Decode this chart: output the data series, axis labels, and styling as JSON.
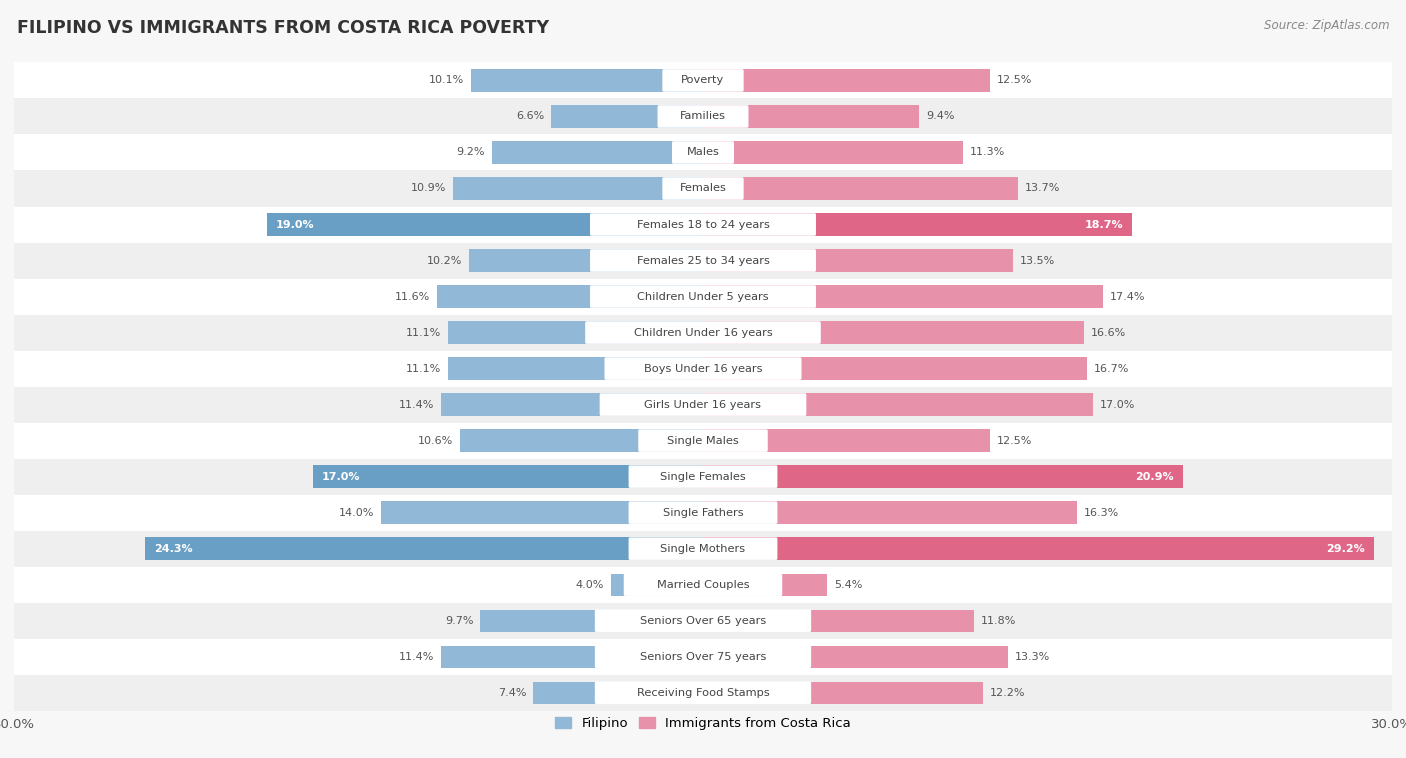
{
  "title": "FILIPINO VS IMMIGRANTS FROM COSTA RICA POVERTY",
  "source": "Source: ZipAtlas.com",
  "categories": [
    "Poverty",
    "Families",
    "Males",
    "Females",
    "Females 18 to 24 years",
    "Females 25 to 34 years",
    "Children Under 5 years",
    "Children Under 16 years",
    "Boys Under 16 years",
    "Girls Under 16 years",
    "Single Males",
    "Single Females",
    "Single Fathers",
    "Single Mothers",
    "Married Couples",
    "Seniors Over 65 years",
    "Seniors Over 75 years",
    "Receiving Food Stamps"
  ],
  "filipino": [
    10.1,
    6.6,
    9.2,
    10.9,
    19.0,
    10.2,
    11.6,
    11.1,
    11.1,
    11.4,
    10.6,
    17.0,
    14.0,
    24.3,
    4.0,
    9.7,
    11.4,
    7.4
  ],
  "costa_rica": [
    12.5,
    9.4,
    11.3,
    13.7,
    18.7,
    13.5,
    17.4,
    16.6,
    16.7,
    17.0,
    12.5,
    20.9,
    16.3,
    29.2,
    5.4,
    11.8,
    13.3,
    12.2
  ],
  "filipino_color": "#92b8d8",
  "costa_rica_color": "#e891aa",
  "filipino_highlight_color": "#6a9fc5",
  "costa_rica_highlight_color": "#e06688",
  "background_color": "#f7f7f7",
  "row_color_light": "#ffffff",
  "row_color_dark": "#efefef",
  "max_value": 30.0,
  "bar_height": 0.62,
  "highlight_indices": [
    4,
    11,
    13
  ],
  "legend_filipino": "Filipino",
  "legend_costa_rica": "Immigrants from Costa Rica"
}
